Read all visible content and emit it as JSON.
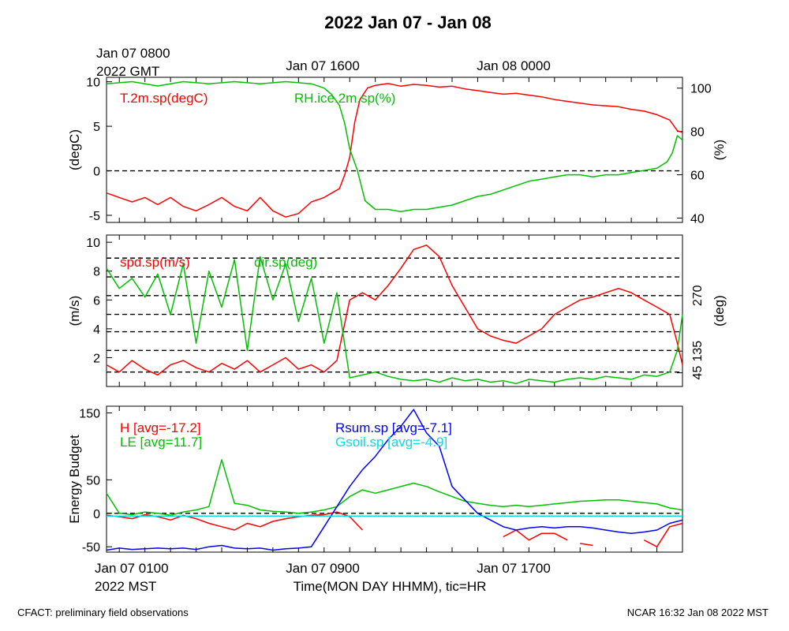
{
  "title": "2022 Jan 07 - Jan 08",
  "top_axis": {
    "tick_labels": [
      "Jan 07 0800",
      "Jan 07 1600",
      "Jan 08 0000"
    ],
    "year_label": "2022 GMT"
  },
  "bottom_axis": {
    "tick_labels": [
      "Jan 07 0100",
      "Jan 07 0900",
      "Jan 07 1700"
    ],
    "year_label": "2022 MST",
    "xlabel": "Time(MON DAY HHMM), tic=HR"
  },
  "footer": {
    "left": "CFACT: preliminary field observations",
    "right": "NCAR 16:32 Jan 08 2022 MST"
  },
  "colors": {
    "red": "#ff0000",
    "green": "#00c000",
    "blue": "#0000ff",
    "cyan": "#00e0e0",
    "black": "#000000"
  },
  "chart_data": [
    {
      "type": "line",
      "panel": "temperature-humidity",
      "x_unit": "hours since Jan 07 0000 MST",
      "xlim": [
        0.5,
        23.0
      ],
      "ylabel_left": "(degC)",
      "ylabel_right": "(%)",
      "ylim_left": [
        -5.8,
        10.5
      ],
      "ylim_right": [
        38,
        105
      ],
      "yticks_left": [
        "-5",
        "0",
        "5",
        "10"
      ],
      "yticks_right": [
        "40",
        "60",
        "80",
        "100"
      ],
      "reference_line": 0,
      "series": [
        {
          "name": "T.2m.sp(degC)",
          "color": "red",
          "axis": "left",
          "x": [
            0.5,
            1.0,
            1.5,
            2.0,
            2.5,
            3.0,
            3.5,
            4.0,
            4.5,
            5.0,
            5.5,
            6.0,
            6.5,
            7.0,
            7.5,
            8.0,
            8.5,
            9.0,
            9.3,
            9.6,
            9.8,
            10.0,
            10.2,
            10.4,
            10.7,
            11.0,
            11.5,
            12.0,
            12.5,
            13.0,
            13.5,
            14.0,
            14.5,
            15.0,
            15.5,
            16.0,
            16.5,
            17.0,
            17.5,
            18.0,
            18.5,
            19.0,
            19.5,
            20.0,
            20.5,
            21.0,
            21.5,
            22.0,
            22.5,
            22.8,
            23.0
          ],
          "y": [
            -2.5,
            -3.0,
            -3.5,
            -3.0,
            -3.8,
            -3.0,
            -4.0,
            -4.5,
            -3.8,
            -3.0,
            -4.0,
            -4.5,
            -3.0,
            -4.5,
            -5.2,
            -4.8,
            -3.5,
            -3.0,
            -2.5,
            -2.0,
            -0.5,
            1.5,
            5.5,
            8.0,
            9.3,
            9.6,
            9.8,
            9.5,
            9.7,
            9.6,
            9.4,
            9.5,
            9.2,
            9.0,
            8.8,
            8.6,
            8.7,
            8.5,
            8.3,
            8.0,
            7.8,
            7.6,
            7.4,
            7.3,
            7.2,
            6.9,
            6.7,
            6.3,
            5.7,
            4.5,
            4.3
          ]
        },
        {
          "name": "RH.ice.2m.sp(%)",
          "color": "green",
          "axis": "right",
          "x": [
            0.5,
            1.5,
            2.5,
            3.5,
            4.5,
            5.5,
            6.5,
            7.5,
            8.5,
            9.0,
            9.3,
            9.6,
            9.8,
            10.0,
            10.3,
            10.6,
            11.0,
            11.5,
            12.0,
            12.5,
            13.0,
            13.5,
            14.0,
            14.5,
            15.0,
            15.5,
            16.0,
            16.5,
            17.0,
            17.5,
            18.0,
            18.5,
            19.0,
            19.5,
            20.0,
            20.5,
            21.0,
            21.5,
            22.0,
            22.4,
            22.6,
            22.8,
            23.0
          ],
          "y": [
            102,
            103,
            101,
            103,
            102,
            103,
            102,
            103,
            102,
            100,
            97,
            92,
            84,
            72,
            62,
            48,
            44,
            44,
            43,
            44,
            44,
            45,
            46,
            48,
            50,
            51,
            53,
            55,
            57,
            58,
            59,
            60,
            60,
            59,
            60,
            60,
            61,
            62,
            63,
            66,
            70,
            78,
            76
          ]
        }
      ]
    },
    {
      "type": "line",
      "panel": "wind",
      "x_unit": "hours since Jan 07 0000 MST",
      "xlim": [
        0.5,
        23.0
      ],
      "ylabel_left": "(m/s)",
      "ylabel_right": "(deg)",
      "ylim_left": [
        0,
        10.5
      ],
      "yticks_left": [
        "2",
        "4",
        "6",
        "8",
        "10"
      ],
      "yticks_right": [
        "45",
        "135",
        "270"
      ],
      "dashed_reference_levels": [
        1.0,
        2.5,
        3.8,
        5.0,
        6.3,
        7.6,
        8.9
      ],
      "series": [
        {
          "name": "spd.sp(m/s)",
          "color": "red",
          "axis": "left",
          "x": [
            0.5,
            1.0,
            1.5,
            2.0,
            2.5,
            3.0,
            3.5,
            4.0,
            4.5,
            5.0,
            5.5,
            6.0,
            6.5,
            7.0,
            7.5,
            8.0,
            8.5,
            9.0,
            9.5,
            10.0,
            10.5,
            11.0,
            11.5,
            12.0,
            12.5,
            13.0,
            13.5,
            14.0,
            14.5,
            15.0,
            15.5,
            16.0,
            16.5,
            17.0,
            17.5,
            18.0,
            18.5,
            19.0,
            19.5,
            20.0,
            20.5,
            21.0,
            21.5,
            22.0,
            22.5,
            22.8,
            23.0
          ],
          "y": [
            1.5,
            1.0,
            1.8,
            1.2,
            0.8,
            1.5,
            1.8,
            1.3,
            1.0,
            1.6,
            1.2,
            1.8,
            1.0,
            1.5,
            2.0,
            1.2,
            1.5,
            1.0,
            1.8,
            6.0,
            6.5,
            6.0,
            7.0,
            8.2,
            9.5,
            9.8,
            9.0,
            7.0,
            5.5,
            4.0,
            3.5,
            3.2,
            3.0,
            3.5,
            4.0,
            5.0,
            5.5,
            6.0,
            6.2,
            6.5,
            6.8,
            6.5,
            6.0,
            5.5,
            5.0,
            3.0,
            1.5
          ]
        },
        {
          "name": "dir.sp(deg)",
          "color": "green",
          "axis": "right",
          "x": [
            0.5,
            1.0,
            1.5,
            2.0,
            2.5,
            3.0,
            3.5,
            4.0,
            4.5,
            5.0,
            5.5,
            6.0,
            6.5,
            7.0,
            7.5,
            8.0,
            8.5,
            9.0,
            9.5,
            10.0,
            10.5,
            11.0,
            11.5,
            12.0,
            12.5,
            13.0,
            13.5,
            14.0,
            14.5,
            15.0,
            15.5,
            16.0,
            16.5,
            17.0,
            17.5,
            18.0,
            18.5,
            19.0,
            19.5,
            20.0,
            20.5,
            21.0,
            21.5,
            22.0,
            22.5,
            22.8,
            23.0
          ],
          "y": [
            8.2,
            6.8,
            7.5,
            6.2,
            7.8,
            5.0,
            8.5,
            3.0,
            8.0,
            5.5,
            8.8,
            2.5,
            9.0,
            6.0,
            8.5,
            4.5,
            7.5,
            3.0,
            6.5,
            0.6,
            0.8,
            1.0,
            0.7,
            0.5,
            0.4,
            0.5,
            0.3,
            0.6,
            0.4,
            0.5,
            0.3,
            0.4,
            0.2,
            0.5,
            0.4,
            0.3,
            0.5,
            0.6,
            0.5,
            0.7,
            0.6,
            0.5,
            0.8,
            0.7,
            1.0,
            2.5,
            5.0
          ]
        }
      ]
    },
    {
      "type": "line",
      "panel": "energy-budget",
      "x_unit": "hours since Jan 07 0000 MST",
      "xlim": [
        0.5,
        23.0
      ],
      "ylabel": "Energy Budget",
      "ylim": [
        -58,
        160
      ],
      "yticks": [
        "-50",
        "0",
        "50",
        "150"
      ],
      "reference_line": 0,
      "series": [
        {
          "name": "H [avg=-17.2]",
          "color": "red",
          "x": [
            0.5,
            1.0,
            1.5,
            2.0,
            2.5,
            3.0,
            3.5,
            4.0,
            4.5,
            5.0,
            5.5,
            6.0,
            6.5,
            7.0,
            7.5,
            8.0,
            8.5,
            9.0,
            9.5,
            10.0,
            10.5,
            null,
            16.0,
            16.5,
            17.0,
            17.5,
            18.0,
            18.5,
            null,
            19.0,
            19.5,
            null,
            21.5,
            22.0,
            22.5,
            23.0
          ],
          "y": [
            -3,
            -5,
            -8,
            -2,
            -5,
            -10,
            -3,
            -8,
            -15,
            -20,
            -25,
            -15,
            -20,
            -12,
            -8,
            -5,
            -3,
            -2,
            2,
            -5,
            -25,
            null,
            -35,
            -25,
            -40,
            -30,
            -30,
            -40,
            null,
            -45,
            -48,
            null,
            -40,
            -50,
            -20,
            -15
          ]
        },
        {
          "name": "LE [avg=11.7]",
          "color": "green",
          "x": [
            0.5,
            1.0,
            1.5,
            2.0,
            2.5,
            3.0,
            3.5,
            4.0,
            4.5,
            5.0,
            5.5,
            6.0,
            6.5,
            7.0,
            7.5,
            8.0,
            8.5,
            9.0,
            9.5,
            10.0,
            10.5,
            11.0,
            11.5,
            12.0,
            12.5,
            13.0,
            13.5,
            14.0,
            14.5,
            15.0,
            15.5,
            16.0,
            16.5,
            17.0,
            17.5,
            18.0,
            18.5,
            19.0,
            19.5,
            20.0,
            20.5,
            21.0,
            21.5,
            22.0,
            22.5,
            23.0
          ],
          "y": [
            30,
            0,
            -2,
            2,
            0,
            -3,
            2,
            5,
            10,
            80,
            15,
            12,
            5,
            3,
            2,
            0,
            2,
            5,
            10,
            25,
            35,
            30,
            35,
            40,
            45,
            40,
            32,
            25,
            18,
            15,
            12,
            10,
            12,
            10,
            12,
            14,
            16,
            18,
            19,
            20,
            20,
            18,
            16,
            14,
            8,
            5
          ]
        },
        {
          "name": "Rsum.sp [avg=-7.1]",
          "color": "blue",
          "x": [
            0.5,
            1.0,
            1.5,
            2.0,
            2.5,
            3.0,
            3.5,
            4.0,
            4.5,
            5.0,
            5.5,
            6.0,
            6.5,
            7.0,
            7.5,
            8.0,
            8.5,
            9.0,
            9.5,
            10.0,
            10.5,
            11.0,
            11.5,
            12.0,
            12.5,
            13.0,
            13.5,
            14.0,
            14.5,
            15.0,
            15.5,
            16.0,
            16.5,
            17.0,
            17.5,
            18.0,
            18.5,
            19.0,
            19.5,
            20.0,
            20.5,
            21.0,
            21.5,
            22.0,
            22.5,
            23.0
          ],
          "y": [
            -55,
            -52,
            -54,
            -53,
            -52,
            -53,
            -52,
            -54,
            -50,
            -48,
            -52,
            -53,
            -52,
            -55,
            -53,
            -52,
            -50,
            -20,
            10,
            40,
            65,
            85,
            110,
            130,
            155,
            120,
            100,
            40,
            20,
            0,
            -10,
            -20,
            -25,
            -22,
            -20,
            -22,
            -20,
            -20,
            -22,
            -25,
            -28,
            -30,
            -28,
            -25,
            -15,
            -10
          ]
        },
        {
          "name": "Gsoil.sp [avg=-4.9]",
          "color": "cyan",
          "x": [
            0.5,
            23.0
          ],
          "y": [
            -4,
            -4
          ]
        }
      ]
    }
  ]
}
